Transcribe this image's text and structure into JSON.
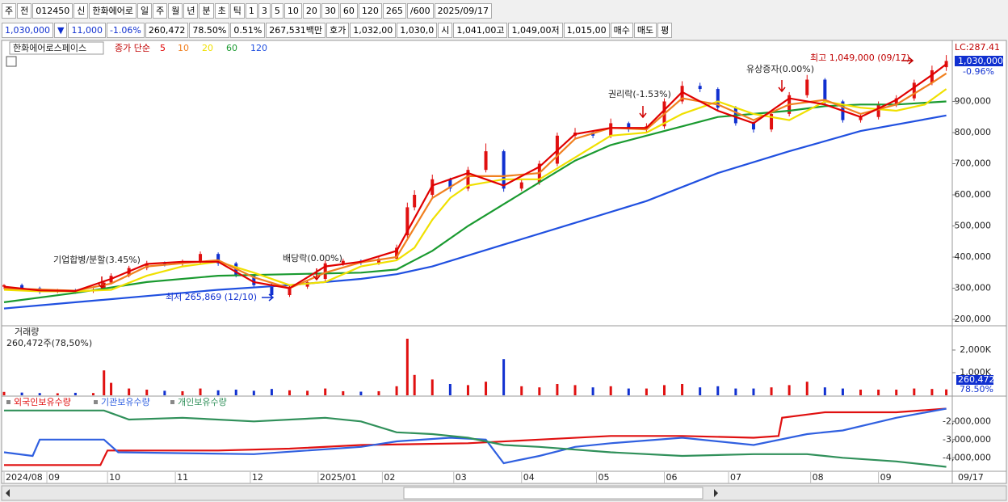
{
  "toolbar": {
    "row1": [
      "주",
      "전",
      "012450",
      "신",
      "한화에어로",
      "일",
      "주",
      "월",
      "년",
      "분",
      "초",
      "틱",
      "1",
      "3",
      "5",
      "10",
      "20",
      "30",
      "60",
      "120",
      "265",
      "/600",
      "2025/09/17"
    ],
    "row2": [
      "1,030,000",
      "▼",
      "11,000",
      "-1.06%",
      "260,472",
      "78.50%",
      "0.51%",
      "267,531백만",
      "호가",
      "1,032,00",
      "1,030,0",
      "시",
      "1,041,00고",
      "1,049,00저",
      "1,015,00",
      "매수",
      "매도",
      "평"
    ]
  },
  "chart_data": [
    {
      "type": "candlestick",
      "title": "한화에어로스페이스",
      "legend_prefix": "종가 단순",
      "up_color": "#e01010",
      "down_color": "#1030d0",
      "x": [
        0,
        5,
        10,
        15,
        20,
        25,
        28,
        30,
        35,
        40,
        45,
        50,
        55,
        60,
        65,
        70,
        75,
        80,
        85,
        90,
        95,
        100,
        105,
        110,
        113,
        115,
        120,
        125,
        130,
        135,
        140,
        145,
        150,
        155,
        160,
        165,
        170,
        175,
        180,
        185,
        190,
        195,
        200,
        205,
        210,
        215,
        220,
        225,
        230,
        235,
        240,
        245,
        250,
        255,
        260,
        264
      ],
      "open": [
        305000,
        310000,
        300000,
        290000,
        292000,
        290000,
        300000,
        318000,
        340000,
        365000,
        380000,
        378000,
        385000,
        410000,
        380000,
        340000,
        310000,
        278000,
        305000,
        330000,
        380000,
        388000,
        382000,
        395000,
        470000,
        560000,
        600000,
        650000,
        620000,
        680000,
        740000,
        620000,
        640000,
        700000,
        790000,
        800000,
        790000,
        830000,
        810000,
        820000,
        900000,
        950000,
        940000,
        880000,
        830000,
        810000,
        860000,
        920000,
        970000,
        900000,
        840000,
        850000,
        890000,
        910000,
        960000,
        1010000
      ],
      "high": [
        313000,
        315000,
        305000,
        298000,
        298000,
        300000,
        325000,
        348000,
        372000,
        388000,
        386000,
        392000,
        418000,
        415000,
        385000,
        345000,
        315000,
        310000,
        325000,
        390000,
        395000,
        392000,
        402000,
        440000,
        575000,
        615000,
        665000,
        655000,
        690000,
        765000,
        745000,
        650000,
        710000,
        800000,
        815000,
        805000,
        845000,
        835000,
        830000,
        910000,
        965000,
        960000,
        945000,
        885000,
        835000,
        870000,
        930000,
        985000,
        975000,
        905000,
        860000,
        900000,
        920000,
        970000,
        1015000,
        1049000
      ],
      "low": [
        298000,
        292000,
        282000,
        284000,
        282000,
        285000,
        295000,
        312000,
        335000,
        358000,
        370000,
        370000,
        378000,
        372000,
        335000,
        302000,
        265869,
        272000,
        298000,
        322000,
        372000,
        375000,
        375000,
        388000,
        462000,
        550000,
        592000,
        610000,
        612000,
        672000,
        610000,
        612000,
        632000,
        692000,
        782000,
        782000,
        782000,
        802000,
        802000,
        812000,
        892000,
        930000,
        870000,
        822000,
        800000,
        802000,
        852000,
        912000,
        892000,
        832000,
        832000,
        842000,
        882000,
        902000,
        952000,
        998000
      ],
      "close": [
        310000,
        300000,
        290000,
        292000,
        290000,
        295000,
        318000,
        340000,
        365000,
        380000,
        378000,
        385000,
        410000,
        380000,
        340000,
        310000,
        278000,
        305000,
        320000,
        380000,
        388000,
        382000,
        395000,
        430000,
        560000,
        600000,
        650000,
        620000,
        680000,
        740000,
        620000,
        640000,
        700000,
        790000,
        800000,
        790000,
        830000,
        810000,
        820000,
        900000,
        950000,
        940000,
        880000,
        830000,
        810000,
        860000,
        920000,
        970000,
        900000,
        840000,
        850000,
        890000,
        910000,
        960000,
        1000000,
        1030000
      ],
      "series": [
        {
          "name": "5",
          "color": "#e00000",
          "x": [
            0,
            10,
            20,
            30,
            40,
            50,
            60,
            70,
            80,
            90,
            100,
            110,
            120,
            130,
            140,
            150,
            160,
            170,
            180,
            190,
            200,
            210,
            220,
            230,
            240,
            250,
            260,
            264
          ],
          "values": [
            305000,
            293000,
            291000,
            330000,
            378000,
            385000,
            385000,
            320000,
            300000,
            370000,
            385000,
            420000,
            630000,
            670000,
            630000,
            690000,
            795000,
            815000,
            815000,
            930000,
            870000,
            830000,
            910000,
            890000,
            850000,
            905000,
            985000,
            1020000
          ]
        },
        {
          "name": "10",
          "color": "#f08020",
          "x": [
            0,
            10,
            20,
            30,
            40,
            50,
            60,
            70,
            80,
            90,
            100,
            110,
            120,
            130,
            140,
            150,
            160,
            170,
            180,
            190,
            200,
            210,
            220,
            230,
            240,
            250,
            260,
            264
          ],
          "values": [
            300000,
            296000,
            292000,
            315000,
            370000,
            380000,
            390000,
            335000,
            300000,
            350000,
            383000,
            400000,
            590000,
            660000,
            660000,
            670000,
            780000,
            815000,
            810000,
            910000,
            890000,
            840000,
            890000,
            905000,
            860000,
            890000,
            960000,
            990000
          ]
        },
        {
          "name": "20",
          "color": "#f0e000",
          "x": [
            0,
            10,
            20,
            30,
            40,
            50,
            60,
            70,
            80,
            90,
            100,
            110,
            115,
            120,
            125,
            130,
            140,
            150,
            160,
            170,
            180,
            190,
            200,
            210,
            220,
            230,
            240,
            250,
            258,
            264
          ],
          "values": [
            295000,
            290000,
            290000,
            295000,
            340000,
            370000,
            385000,
            350000,
            310000,
            320000,
            370000,
            390000,
            430000,
            520000,
            590000,
            630000,
            650000,
            650000,
            720000,
            790000,
            800000,
            860000,
            900000,
            860000,
            840000,
            900000,
            880000,
            870000,
            890000,
            940000
          ]
        },
        {
          "name": "60",
          "color": "#1a9a30",
          "x": [
            0,
            20,
            40,
            60,
            80,
            100,
            110,
            120,
            130,
            140,
            150,
            160,
            170,
            180,
            190,
            200,
            210,
            220,
            230,
            240,
            250,
            264
          ],
          "values": [
            255000,
            285000,
            320000,
            340000,
            345000,
            350000,
            360000,
            420000,
            500000,
            570000,
            640000,
            710000,
            760000,
            790000,
            820000,
            850000,
            860000,
            870000,
            885000,
            890000,
            890000,
            900000
          ]
        },
        {
          "name": "120",
          "color": "#2050e0",
          "x": [
            0,
            20,
            40,
            60,
            80,
            100,
            110,
            120,
            140,
            160,
            180,
            200,
            220,
            240,
            264
          ],
          "values": [
            235000,
            255000,
            275000,
            295000,
            310000,
            330000,
            345000,
            370000,
            440000,
            510000,
            580000,
            670000,
            740000,
            805000,
            855000
          ]
        }
      ],
      "xlim": [
        0,
        265
      ],
      "ylim": [
        182000,
        1083000
      ],
      "yticks": [
        {
          "value": 200000,
          "label": "200,000"
        },
        {
          "value": 300000,
          "label": "300,000"
        },
        {
          "value": 400000,
          "label": "400,000"
        },
        {
          "value": 500000,
          "label": "500,000"
        },
        {
          "value": 600000,
          "label": "600,000"
        },
        {
          "value": 700000,
          "label": "700,000"
        },
        {
          "value": 800000,
          "label": "800,000"
        },
        {
          "value": 900000,
          "label": "900,000"
        }
      ],
      "annotations": [
        "최고 1,049,000 (09/17)",
        "최저 265,869 (12/10)",
        "기업합병/분할(3.45%)",
        "배당락(0.00%)",
        "권리락(-1.53%)",
        "유상증자(0.00%)"
      ],
      "right_labels": [
        "LC:287.41",
        "1,030,000",
        "-0.96%"
      ]
    },
    {
      "type": "bar",
      "title": "거래량",
      "subtitle": "260,472주(78,50%)",
      "values": [
        150000,
        120000,
        100000,
        90000,
        110000,
        100000,
        1100000,
        550000,
        300000,
        250000,
        200000,
        180000,
        300000,
        220000,
        250000,
        200000,
        280000,
        220000,
        200000,
        300000,
        180000,
        160000,
        180000,
        400000,
        2500000,
        900000,
        700000,
        500000,
        450000,
        600000,
        1600000,
        400000,
        350000,
        500000,
        450000,
        350000,
        400000,
        300000,
        300000,
        450000,
        500000,
        350000,
        400000,
        300000,
        300000,
        350000,
        450000,
        600000,
        350000,
        300000,
        250000,
        250000,
        250000,
        300000,
        280000,
        260472
      ],
      "ylim": [
        0,
        3000000
      ],
      "yticks": [
        {
          "value": 1000000,
          "label": "1,000K"
        },
        {
          "value": 2000000,
          "label": "2,000K"
        }
      ],
      "right_labels": [
        "260,472",
        "78.50%"
      ]
    },
    {
      "type": "line",
      "xlim": [
        0,
        265
      ],
      "ylim": [
        -4700000,
        -700000
      ],
      "yticks": [
        {
          "value": -2000000,
          "label": "-2,000,000"
        },
        {
          "value": -3000000,
          "label": "-3,000,000"
        },
        {
          "value": -4000000,
          "label": "-4,000,000"
        }
      ],
      "xticks": [
        {
          "value": 0,
          "label": "2024/08"
        },
        {
          "value": 12,
          "label": "09"
        },
        {
          "value": 29,
          "label": "10"
        },
        {
          "value": 48,
          "label": "11"
        },
        {
          "value": 69,
          "label": "12"
        },
        {
          "value": 88,
          "label": "2025/01"
        },
        {
          "value": 106,
          "label": "02"
        },
        {
          "value": 126,
          "label": "03"
        },
        {
          "value": 145,
          "label": "04"
        },
        {
          "value": 166,
          "label": "05"
        },
        {
          "value": 185,
          "label": "06"
        },
        {
          "value": 203,
          "label": "07"
        },
        {
          "value": 226,
          "label": "08"
        },
        {
          "value": 245,
          "label": "09"
        }
      ],
      "end_label": "09/17",
      "series": [
        {
          "name": "외국인보유수량",
          "color": "#e01010",
          "x": [
            0,
            27,
            29,
            60,
            80,
            100,
            130,
            150,
            170,
            190,
            210,
            217,
            218,
            230,
            250,
            264
          ],
          "values": [
            -4400000,
            -4400000,
            -3600000,
            -3600000,
            -3500000,
            -3300000,
            -3200000,
            -3000000,
            -2800000,
            -2800000,
            -2900000,
            -2800000,
            -1800000,
            -1500000,
            -1500000,
            -1300000
          ]
        },
        {
          "name": "기관보유수량",
          "color": "#3060e0",
          "x": [
            0,
            8,
            10,
            28,
            32,
            70,
            100,
            110,
            125,
            135,
            140,
            150,
            160,
            170,
            190,
            200,
            210,
            225,
            235,
            250,
            264
          ],
          "values": [
            -3700000,
            -3900000,
            -3000000,
            -3000000,
            -3700000,
            -3800000,
            -3400000,
            -3100000,
            -2900000,
            -3000000,
            -4300000,
            -3900000,
            -3400000,
            -3200000,
            -2900000,
            -3100000,
            -3300000,
            -2700000,
            -2500000,
            -1800000,
            -1300000
          ]
        },
        {
          "name": "개인보유수량",
          "color": "#30905a",
          "x": [
            0,
            28,
            35,
            50,
            70,
            90,
            100,
            110,
            120,
            130,
            140,
            150,
            170,
            190,
            210,
            225,
            235,
            250,
            264
          ],
          "values": [
            -1400000,
            -1400000,
            -1900000,
            -1800000,
            -2000000,
            -1800000,
            -2000000,
            -2600000,
            -2700000,
            -2900000,
            -3300000,
            -3400000,
            -3700000,
            -3900000,
            -3800000,
            -3800000,
            -4000000,
            -4200000,
            -4500000
          ]
        }
      ]
    }
  ]
}
